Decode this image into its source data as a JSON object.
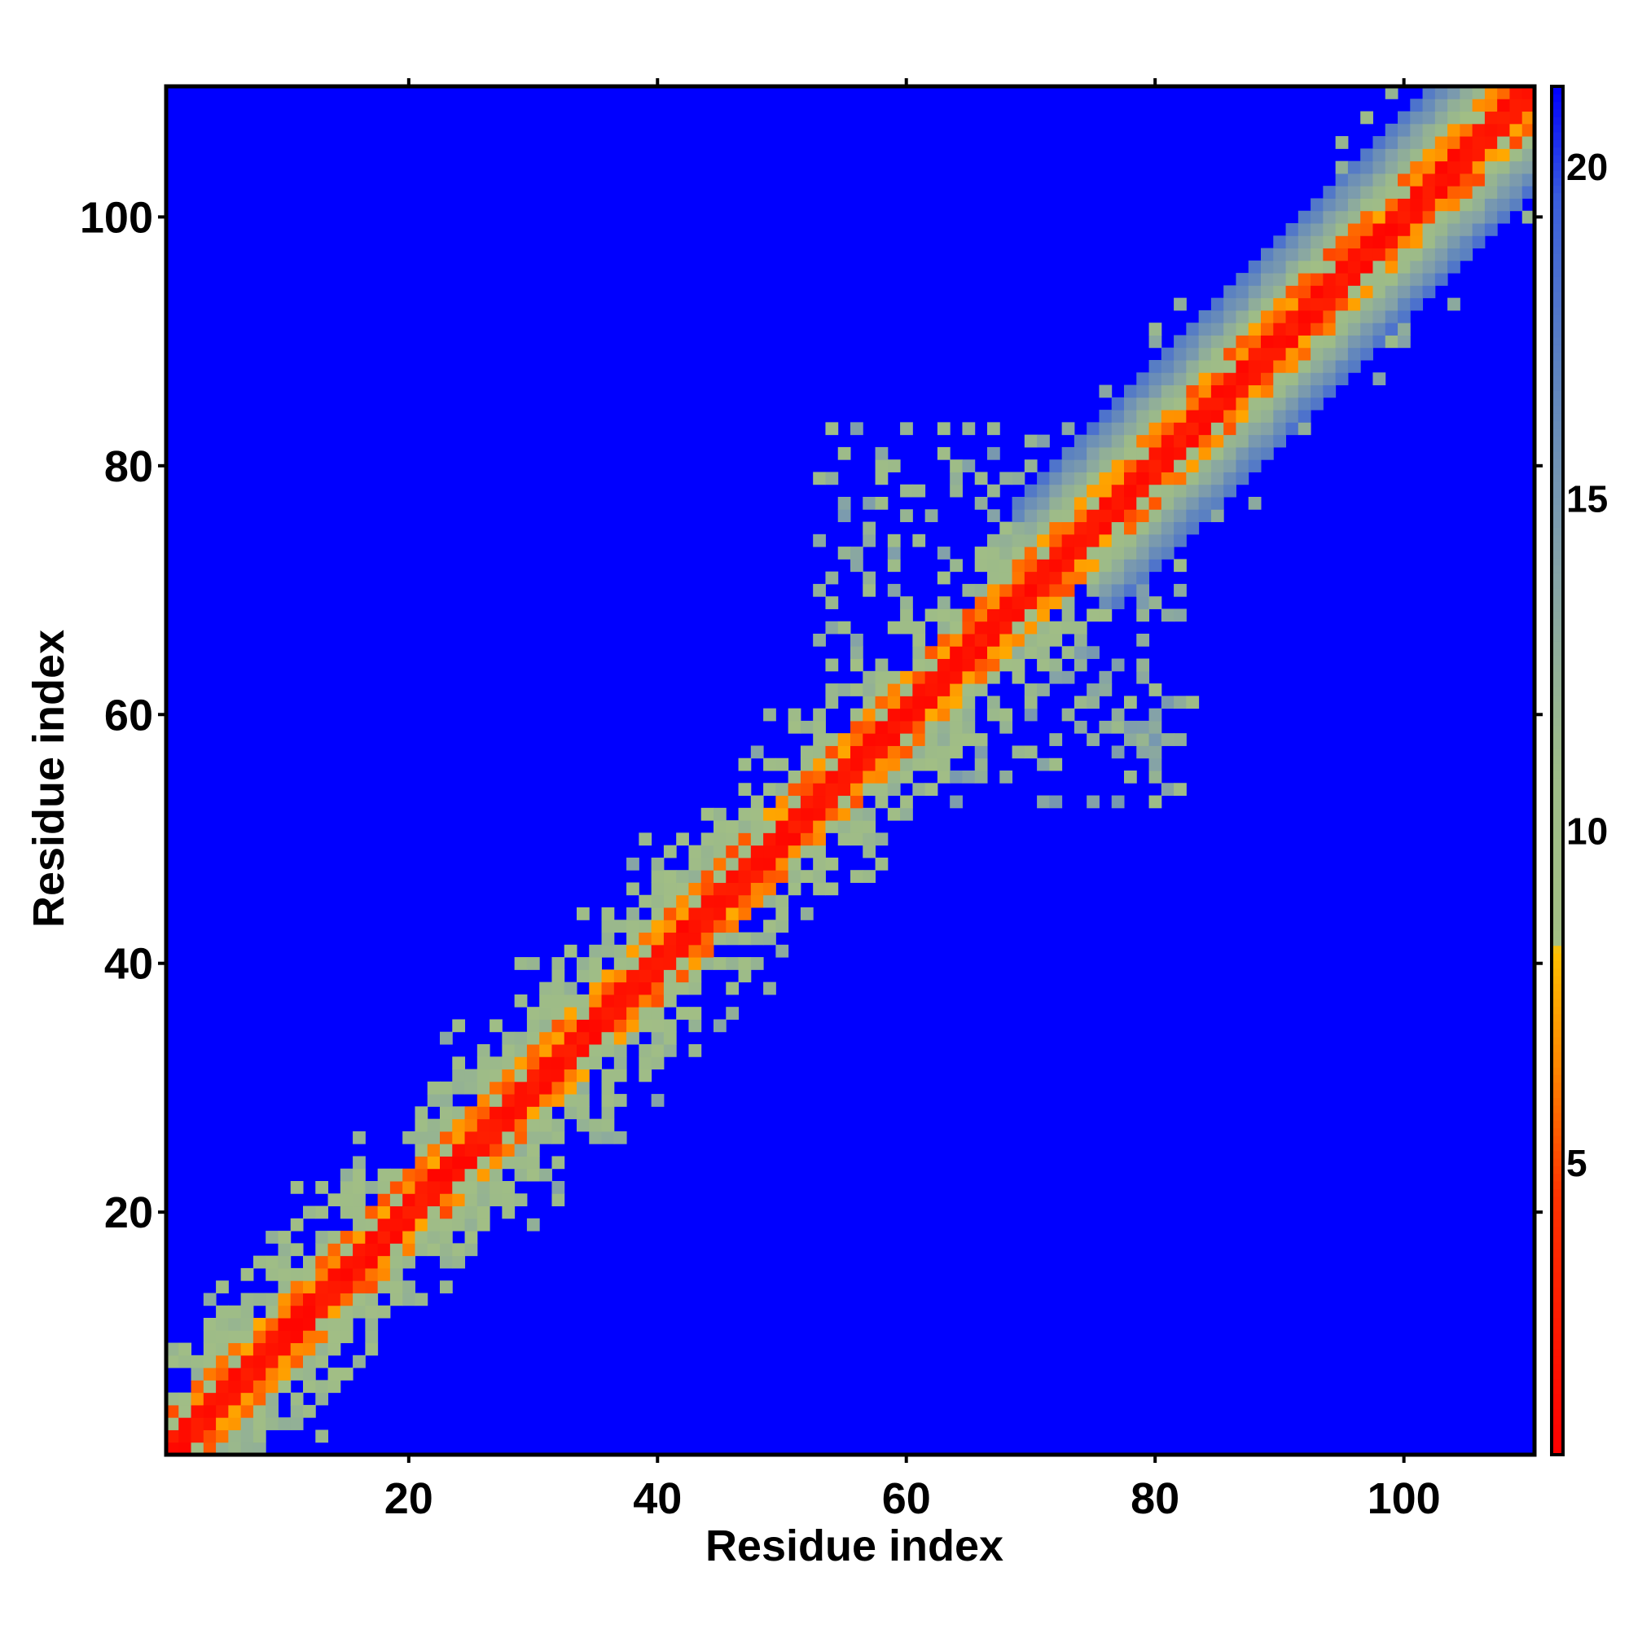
{
  "chart_data": {
    "type": "heatmap",
    "title": "",
    "xlabel": "Residue index",
    "ylabel": "Residue index",
    "n_residues": 110,
    "xlim": [
      1,
      110
    ],
    "ylim": [
      1,
      110
    ],
    "x_ticks": [
      20,
      40,
      60,
      80,
      100
    ],
    "y_ticks": [
      20,
      40,
      60,
      80,
      100
    ],
    "grid": false,
    "colorbar": {
      "position": "right",
      "range": [
        0.6,
        21.2
      ],
      "ticks": [
        5,
        10,
        15,
        20
      ],
      "stops": [
        {
          "value": 0.6,
          "color": "#ff0000"
        },
        {
          "value": 4.5,
          "color": "#ff3300"
        },
        {
          "value": 6.5,
          "color": "#ff8800"
        },
        {
          "value": 8.2,
          "color": "#ffc000"
        },
        {
          "value": 8.3,
          "color": "#a3bf84"
        },
        {
          "value": 11.0,
          "color": "#9dbb88"
        },
        {
          "value": 14.0,
          "color": "#84a2a8"
        },
        {
          "value": 17.0,
          "color": "#5c82c0"
        },
        {
          "value": 19.5,
          "color": "#3a5edc"
        },
        {
          "value": 21.2,
          "color": "#0000ff"
        }
      ]
    },
    "background_color": "#0000ff",
    "diagonal_band": {
      "red_halfwidth_residues": 1.5,
      "orange_halfwidth_residues": 3,
      "broad_halfwidth_residues": 8
    },
    "side_domain": {
      "x_range": [
        53,
        83
      ],
      "y_range": [
        53,
        83
      ],
      "fill": "speckled"
    }
  }
}
